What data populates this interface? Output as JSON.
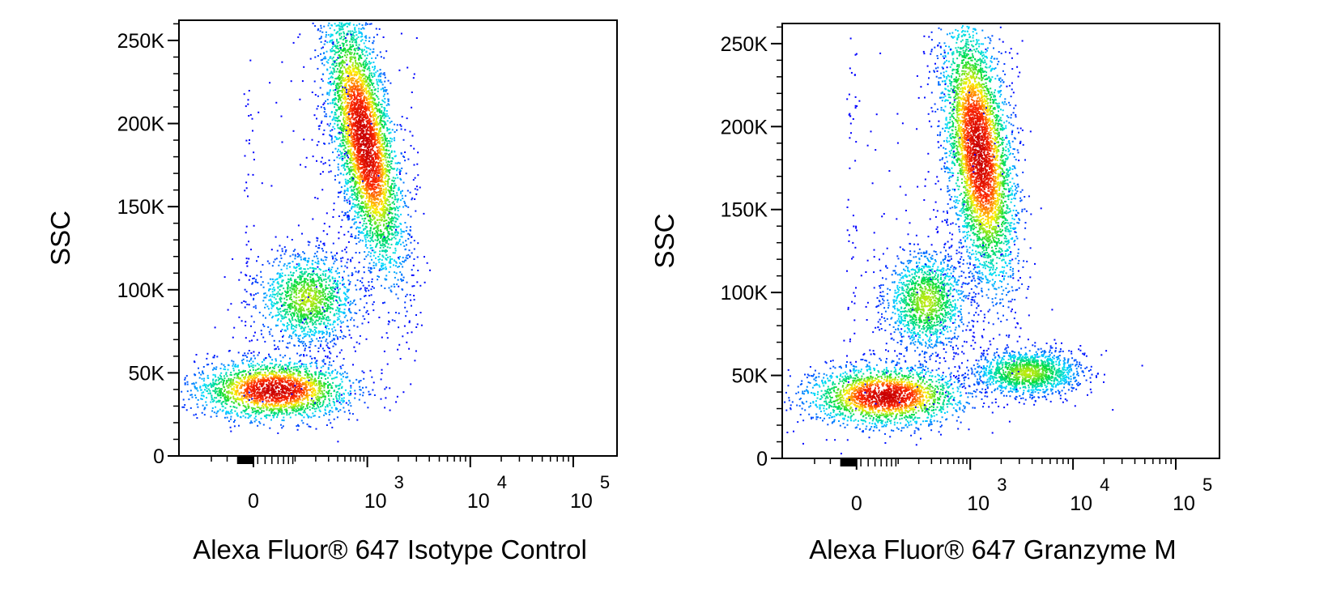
{
  "chart_data": [
    {
      "type": "scatter",
      "subtype": "flow-cytometry-density-dot-plot",
      "title": "",
      "xlabel": "Alexa Fluor® 647 Isotype Control",
      "ylabel": "SSC",
      "x_scale": "biexponential",
      "xlim": [
        -1000,
        100000
      ],
      "ylim": [
        0,
        262144
      ],
      "y_ticks": [
        {
          "value": 0,
          "label": "0"
        },
        {
          "value": 50000,
          "label": "50K"
        },
        {
          "value": 100000,
          "label": "100K"
        },
        {
          "value": 150000,
          "label": "150K"
        },
        {
          "value": 200000,
          "label": "200K"
        },
        {
          "value": 250000,
          "label": "250K"
        }
      ],
      "x_ticks": [
        {
          "value": 0,
          "base": "0",
          "exp": ""
        },
        {
          "value": 1000,
          "base": "10",
          "exp": "3"
        },
        {
          "value": 10000,
          "base": "10",
          "exp": "4"
        },
        {
          "value": 100000,
          "base": "10",
          "exp": "5"
        }
      ],
      "color_scale": "blue-cyan-green-yellow-red (density)",
      "populations": [
        {
          "center": [
            40,
            40000
          ],
          "spread": [
            120,
            9000
          ],
          "density": "high"
        },
        {
          "center": [
            150,
            95000
          ],
          "spread": [
            150,
            14000
          ],
          "density": "medium"
        },
        {
          "center": [
            900,
            190000
          ],
          "spread": [
            300,
            40000
          ],
          "density": "very high"
        }
      ]
    },
    {
      "type": "scatter",
      "subtype": "flow-cytometry-density-dot-plot",
      "title": "",
      "xlabel": "Alexa Fluor® 647 Granzyme M",
      "ylabel": "SSC",
      "x_scale": "biexponential",
      "xlim": [
        -1000,
        100000
      ],
      "ylim": [
        0,
        262144
      ],
      "y_ticks": [
        {
          "value": 0,
          "label": "0"
        },
        {
          "value": 50000,
          "label": "50K"
        },
        {
          "value": 100000,
          "label": "100K"
        },
        {
          "value": 150000,
          "label": "150K"
        },
        {
          "value": 200000,
          "label": "200K"
        },
        {
          "value": 250000,
          "label": "250K"
        }
      ],
      "x_ticks": [
        {
          "value": 0,
          "base": "0",
          "exp": ""
        },
        {
          "value": 1000,
          "base": "10",
          "exp": "3"
        },
        {
          "value": 10000,
          "base": "10",
          "exp": "4"
        },
        {
          "value": 100000,
          "base": "10",
          "exp": "5"
        }
      ],
      "color_scale": "blue-cyan-green-yellow-red (density)",
      "populations": [
        {
          "center": [
            60,
            38000
          ],
          "spread": [
            150,
            9000
          ],
          "density": "high"
        },
        {
          "center": [
            250,
            95000
          ],
          "spread": [
            180,
            15000
          ],
          "density": "medium"
        },
        {
          "center": [
            1200,
            185000
          ],
          "spread": [
            400,
            40000
          ],
          "density": "very high"
        },
        {
          "center": [
            3500,
            52000
          ],
          "spread": [
            2500,
            7000
          ],
          "density": "medium"
        }
      ]
    }
  ]
}
